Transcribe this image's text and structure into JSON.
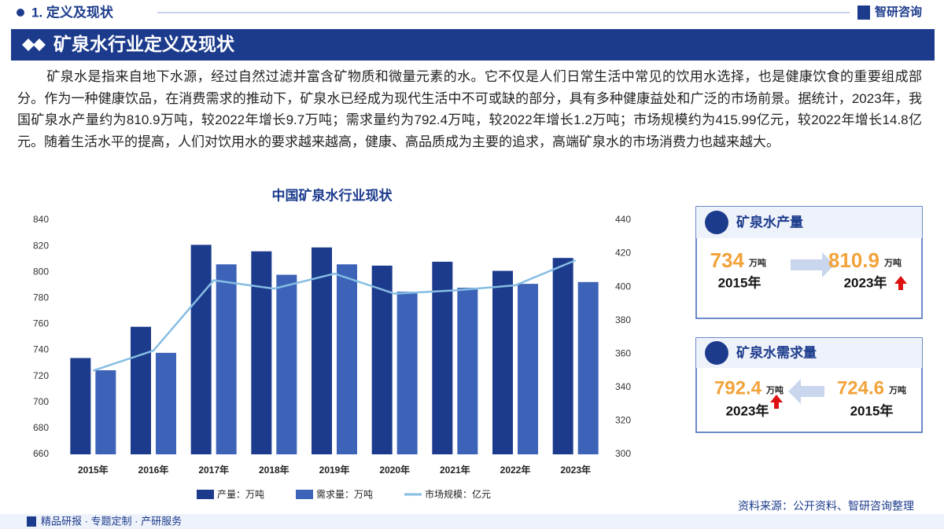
{
  "header": {
    "section": "1. 定义及现状",
    "logo": "智研咨询",
    "banner": "矿泉水行业定义及现状"
  },
  "paragraph": "矿泉水是指来自地下水源，经过自然过滤并富含矿物质和微量元素的水。它不仅是人们日常生活中常见的饮用水选择，也是健康饮食的重要组成部分。作为一种健康饮品，在消费需求的推动下，矿泉水已经成为现代生活中不可或缺的部分，具有多种健康益处和广泛的市场前景。据统计，2023年，我国矿泉水产量约为810.9万吨，较2022年增长9.7万吨；需求量约为792.4万吨，较2022年增长1.2万吨；市场规模约为415.99亿元，较2022年增长14.8亿元。随着生活水平的提高，人们对饮用水的要求越来越高，健康、高品质成为主要的追求，高端矿泉水的市场消费力也越来越大。",
  "chart_data": {
    "type": "bar",
    "title": "中国矿泉水行业现状",
    "categories": [
      "2015年",
      "2016年",
      "2017年",
      "2018年",
      "2019年",
      "2020年",
      "2021年",
      "2022年",
      "2023年"
    ],
    "series": [
      {
        "name": "产量：万吨",
        "type": "bar",
        "color": "#1c3b8c",
        "values": [
          734,
          758,
          821,
          816,
          819,
          805,
          808,
          801,
          810.9
        ]
      },
      {
        "name": "需求量：万吨",
        "type": "bar",
        "color": "#3d63b8",
        "values": [
          724.6,
          738,
          806,
          798,
          806,
          785,
          788,
          791,
          792.4
        ]
      },
      {
        "name": "市场规模：亿元",
        "type": "line",
        "axis": "y2",
        "color": "#86bde3",
        "values": [
          350,
          362,
          404,
          399,
          408,
          396,
          398,
          401,
          415.99
        ]
      }
    ],
    "ylim": [
      660,
      840
    ],
    "yticks": [
      660,
      680,
      700,
      720,
      740,
      760,
      780,
      800,
      820,
      840
    ],
    "y2lim": [
      300,
      440
    ],
    "y2ticks": [
      300,
      320,
      340,
      360,
      380,
      400,
      420,
      440
    ],
    "grid": false,
    "legend": "bottom"
  },
  "cards": [
    {
      "title": "矿泉水产量",
      "left_value": 734,
      "left_unit": "万吨",
      "left_year": "2015年",
      "right_value": 810.9,
      "right_unit": "万吨",
      "right_year": "2023年"
    },
    {
      "title": "矿泉水需求量",
      "left_value": 792.4,
      "left_unit": "万吨",
      "left_year": "2023年",
      "right_value": 724.6,
      "right_unit": "万吨",
      "right_year": "2015年"
    }
  ],
  "footer": {
    "source": "资料来源：公开资料、智研咨询整理",
    "tagline": "精品研报 · 专题定制 · 产研服务"
  }
}
